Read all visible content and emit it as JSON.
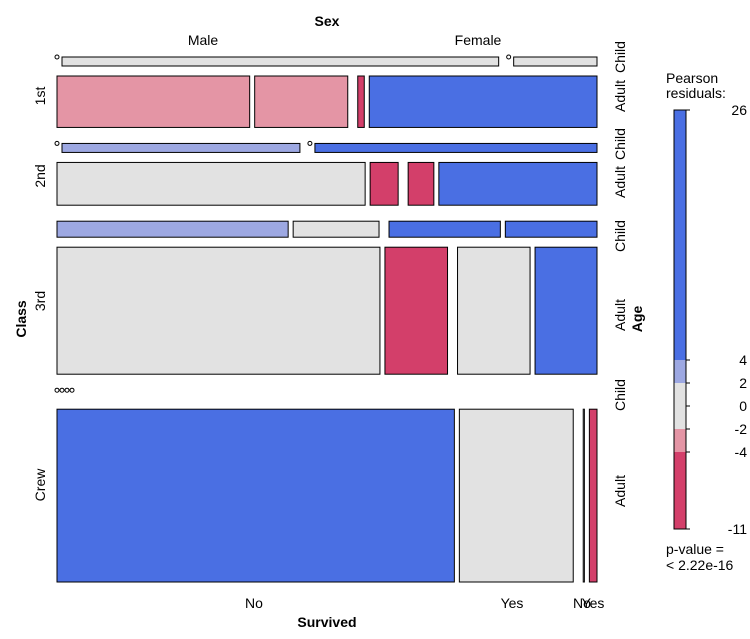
{
  "chart_data": {
    "type": "mosaic",
    "title": "",
    "variables": {
      "top": "Sex",
      "left": "Class",
      "right": "Age",
      "bottom": "Survived"
    },
    "levels": {
      "Sex": [
        "Male",
        "Female"
      ],
      "Class": [
        "1st",
        "2nd",
        "3rd",
        "Crew"
      ],
      "Age": [
        "Child",
        "Adult"
      ],
      "Survived": [
        "No",
        "Yes"
      ]
    },
    "bottom_labels": [
      "No",
      "Yes",
      "No",
      "Yes"
    ],
    "cells": [
      {
        "class": "1st",
        "age": "Child",
        "sex": "Male",
        "survived": "No",
        "count": 0,
        "shade": "zero"
      },
      {
        "class": "1st",
        "age": "Child",
        "sex": "Male",
        "survived": "Yes",
        "count": 5,
        "shade": "neutral"
      },
      {
        "class": "1st",
        "age": "Child",
        "sex": "Female",
        "survived": "No",
        "count": 0,
        "shade": "zero"
      },
      {
        "class": "1st",
        "age": "Child",
        "sex": "Female",
        "survived": "Yes",
        "count": 1,
        "shade": "neutral"
      },
      {
        "class": "1st",
        "age": "Adult",
        "sex": "Male",
        "survived": "No",
        "count": 118,
        "shade": "neg_medium"
      },
      {
        "class": "1st",
        "age": "Adult",
        "sex": "Male",
        "survived": "Yes",
        "count": 57,
        "shade": "neg_medium"
      },
      {
        "class": "1st",
        "age": "Adult",
        "sex": "Female",
        "survived": "No",
        "count": 4,
        "shade": "neg_strong"
      },
      {
        "class": "1st",
        "age": "Adult",
        "sex": "Female",
        "survived": "Yes",
        "count": 140,
        "shade": "pos_strong"
      },
      {
        "class": "2nd",
        "age": "Child",
        "sex": "Male",
        "survived": "No",
        "count": 0,
        "shade": "zero"
      },
      {
        "class": "2nd",
        "age": "Child",
        "sex": "Male",
        "survived": "Yes",
        "count": 11,
        "shade": "pos_medium"
      },
      {
        "class": "2nd",
        "age": "Child",
        "sex": "Female",
        "survived": "No",
        "count": 0,
        "shade": "zero"
      },
      {
        "class": "2nd",
        "age": "Child",
        "sex": "Female",
        "survived": "Yes",
        "count": 13,
        "shade": "pos_strong"
      },
      {
        "class": "2nd",
        "age": "Adult",
        "sex": "Male",
        "survived": "No",
        "count": 154,
        "shade": "neutral"
      },
      {
        "class": "2nd",
        "age": "Adult",
        "sex": "Male",
        "survived": "Yes",
        "count": 14,
        "shade": "neg_strong"
      },
      {
        "class": "2nd",
        "age": "Adult",
        "sex": "Female",
        "survived": "No",
        "count": 13,
        "shade": "neg_strong"
      },
      {
        "class": "2nd",
        "age": "Adult",
        "sex": "Female",
        "survived": "Yes",
        "count": 80,
        "shade": "pos_strong"
      },
      {
        "class": "3rd",
        "age": "Child",
        "sex": "Male",
        "survived": "No",
        "count": 35,
        "shade": "pos_medium"
      },
      {
        "class": "3rd",
        "age": "Child",
        "sex": "Male",
        "survived": "Yes",
        "count": 13,
        "shade": "neutral"
      },
      {
        "class": "3rd",
        "age": "Child",
        "sex": "Female",
        "survived": "No",
        "count": 17,
        "shade": "pos_strong"
      },
      {
        "class": "3rd",
        "age": "Child",
        "sex": "Female",
        "survived": "Yes",
        "count": 14,
        "shade": "pos_strong"
      },
      {
        "class": "3rd",
        "age": "Adult",
        "sex": "Male",
        "survived": "No",
        "count": 387,
        "shade": "neutral"
      },
      {
        "class": "3rd",
        "age": "Adult",
        "sex": "Male",
        "survived": "Yes",
        "count": 75,
        "shade": "neg_strong"
      },
      {
        "class": "3rd",
        "age": "Adult",
        "sex": "Female",
        "survived": "No",
        "count": 89,
        "shade": "neutral"
      },
      {
        "class": "3rd",
        "age": "Adult",
        "sex": "Female",
        "survived": "Yes",
        "count": 76,
        "shade": "pos_strong"
      },
      {
        "class": "Crew",
        "age": "Child",
        "sex": "Male",
        "survived": "No",
        "count": 0,
        "shade": "zero"
      },
      {
        "class": "Crew",
        "age": "Child",
        "sex": "Male",
        "survived": "Yes",
        "count": 0,
        "shade": "zero"
      },
      {
        "class": "Crew",
        "age": "Child",
        "sex": "Female",
        "survived": "No",
        "count": 0,
        "shade": "zero"
      },
      {
        "class": "Crew",
        "age": "Child",
        "sex": "Female",
        "survived": "Yes",
        "count": 0,
        "shade": "zero"
      },
      {
        "class": "Crew",
        "age": "Adult",
        "sex": "Male",
        "survived": "No",
        "count": 670,
        "shade": "pos_strong"
      },
      {
        "class": "Crew",
        "age": "Adult",
        "sex": "Male",
        "survived": "Yes",
        "count": 192,
        "shade": "neutral"
      },
      {
        "class": "Crew",
        "age": "Adult",
        "sex": "Female",
        "survived": "No",
        "count": 3,
        "shade": "neutral"
      },
      {
        "class": "Crew",
        "age": "Adult",
        "sex": "Female",
        "survived": "Yes",
        "count": 20,
        "shade": "neg_strong"
      }
    ],
    "legend": {
      "title_lines": [
        "Pearson",
        "residuals:"
      ],
      "range": [
        -11,
        26
      ],
      "ticks": [
        26,
        4,
        2,
        0,
        -2,
        -4,
        -11
      ],
      "pvalue_lines": [
        "p-value =",
        "< 2.22e-16"
      ],
      "bins": [
        {
          "from": 4,
          "to": 26,
          "shade": "pos_strong"
        },
        {
          "from": 2,
          "to": 4,
          "shade": "pos_medium"
        },
        {
          "from": -2,
          "to": 2,
          "shade": "neutral"
        },
        {
          "from": -4,
          "to": -2,
          "shade": "neg_medium"
        },
        {
          "from": -11,
          "to": -4,
          "shade": "neg_strong"
        }
      ]
    },
    "colors": {
      "pos_strong": "#4a6fe3",
      "pos_medium": "#9da8e2",
      "neutral": "#e2e2e2",
      "neg_medium": "#e495a5",
      "neg_strong": "#d33f6a",
      "zero": "#000000"
    }
  }
}
